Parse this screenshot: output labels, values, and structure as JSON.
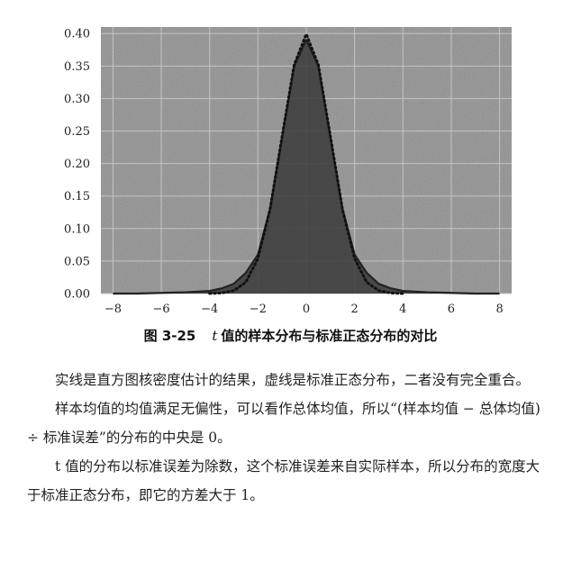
{
  "chart_data": {
    "type": "area",
    "title": "",
    "xlabel": "",
    "ylabel": "",
    "xlim": [
      -8.5,
      8.5
    ],
    "ylim": [
      0,
      0.41
    ],
    "xticks": [
      "−8",
      "−6",
      "−4",
      "−2",
      "0",
      "2",
      "4",
      "6",
      "8"
    ],
    "xtick_values": [
      -8,
      -6,
      -4,
      -2,
      0,
      2,
      4,
      6,
      8
    ],
    "yticks": [
      "0.00",
      "0.05",
      "0.10",
      "0.15",
      "0.20",
      "0.25",
      "0.30",
      "0.35",
      "0.40"
    ],
    "ytick_values": [
      0,
      0.05,
      0.1,
      0.15,
      0.2,
      0.25,
      0.3,
      0.35,
      0.4
    ],
    "grid": true,
    "background": "#8f8f8f",
    "grid_color": "#c4c4c4",
    "series": [
      {
        "style": "solid",
        "color": "#222222",
        "x": [
          -8,
          -7,
          -6,
          -5,
          -4,
          -3.5,
          -3,
          -2.5,
          -2,
          -1.5,
          -1,
          -0.5,
          0,
          0.5,
          1,
          1.5,
          2,
          2.5,
          3,
          3.5,
          4,
          5,
          6,
          7,
          8
        ],
        "y": [
          0.0,
          0.0,
          0.001,
          0.002,
          0.004,
          0.008,
          0.015,
          0.032,
          0.06,
          0.13,
          0.24,
          0.35,
          0.39,
          0.35,
          0.24,
          0.13,
          0.06,
          0.032,
          0.015,
          0.008,
          0.004,
          0.002,
          0.001,
          0.0,
          0.0
        ]
      },
      {
        "style": "dotted",
        "color": "#111111",
        "x": [
          -4,
          -3.5,
          -3,
          -2.5,
          -2,
          -1.5,
          -1,
          -0.5,
          0,
          0.5,
          1,
          1.5,
          2,
          2.5,
          3,
          3.5,
          4
        ],
        "y": [
          0.0001,
          0.0009,
          0.0044,
          0.0175,
          0.054,
          0.1295,
          0.242,
          0.352,
          0.399,
          0.352,
          0.242,
          0.1295,
          0.054,
          0.0175,
          0.0044,
          0.0009,
          0.0001
        ]
      }
    ]
  },
  "caption": {
    "number": "图 3-25",
    "variable": "t",
    "text": "值的样本分布与标准正态分布的对比"
  },
  "body": {
    "paragraphs": [
      "实线是直方图核密度估计的结果，虚线是标准正态分布，二者没有完全重合。",
      "样本均值的均值满足无偏性，可以看作总体均值，所以“(样本均值 − 总体均值) ÷ 标准误差”的分布的中央是 0。",
      "t 值的分布以标准误差为除数，这个标准误差来自实际样本，所以分布的宽度大于标准正态分布，即它的方差大于 1。"
    ]
  }
}
